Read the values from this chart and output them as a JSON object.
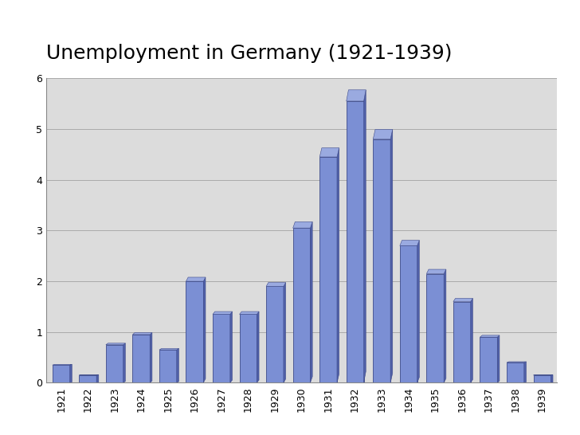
{
  "title": "Unemployment in Germany (1921-1939)",
  "years": [
    1921,
    1922,
    1923,
    1924,
    1925,
    1926,
    1927,
    1928,
    1929,
    1930,
    1931,
    1932,
    1933,
    1934,
    1935,
    1936,
    1937,
    1938,
    1939
  ],
  "values": [
    0.35,
    0.15,
    0.75,
    0.95,
    0.65,
    2.0,
    1.35,
    1.35,
    1.9,
    3.05,
    4.45,
    5.55,
    4.8,
    2.7,
    2.15,
    1.6,
    0.9,
    0.4,
    0.15
  ],
  "bar_face_color": "#7B8FD4",
  "bar_edge_color": "#3D4A8A",
  "bar_right_color": "#5060A8",
  "bar_top_color": "#9AAAE0",
  "background_color": "#DCDCDC",
  "fig_background": "#FFFFFF",
  "grid_color": "#AAAAAA",
  "ylim": [
    0,
    6
  ],
  "yticks": [
    0,
    1,
    2,
    3,
    4,
    5,
    6
  ],
  "title_fontsize": 18,
  "tick_fontsize": 9,
  "bar_width": 0.65
}
